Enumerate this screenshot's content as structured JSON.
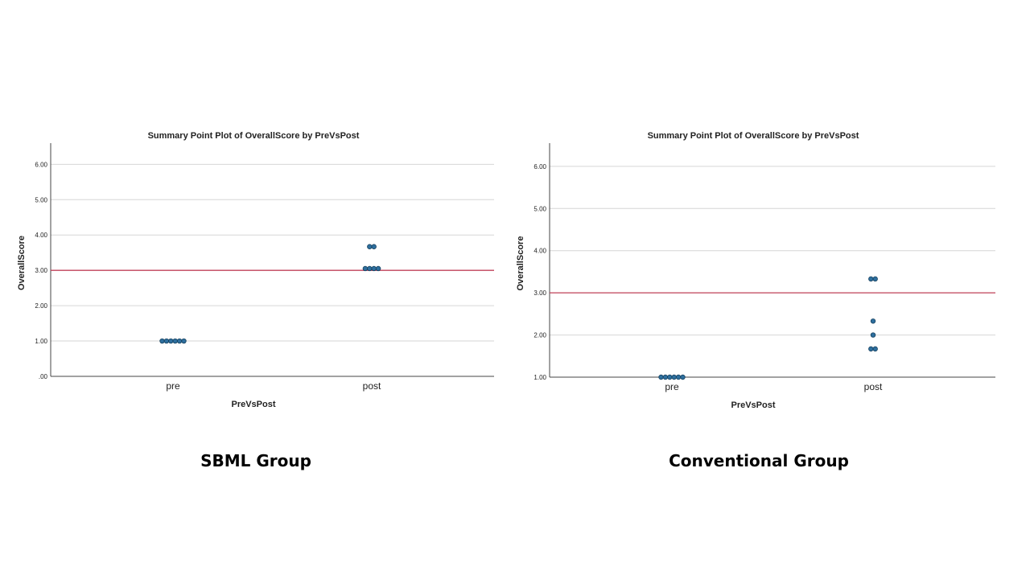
{
  "colors": {
    "point_fill": "#2e6f9e",
    "point_stroke": "#16415f",
    "reference_line": "#c2415a",
    "grid": "#d6d6d6",
    "axis": "#444444"
  },
  "charts": {
    "sbml": {
      "caption": "SBML Group"
    },
    "conventional": {
      "caption": "Conventional Group"
    }
  },
  "chart_data": [
    {
      "type": "scatter",
      "title": "Summary Point Plot of OverallScore by PreVsPost",
      "xlabel": "PreVsPost",
      "ylabel": "OverallScore",
      "categories": [
        "pre",
        "post"
      ],
      "ylim": [
        0,
        6.6
      ],
      "yticks": [
        0,
        1,
        2,
        3,
        4,
        5,
        6
      ],
      "ytick_labels": [
        ".00",
        "1.00",
        "2.00",
        "3.00",
        "4.00",
        "5.00",
        "6.00"
      ],
      "grid": true,
      "reference_line": 3.0,
      "points": [
        {
          "category": "pre",
          "values": [
            1.0,
            1.0,
            1.0,
            1.0,
            1.0,
            1.0
          ]
        },
        {
          "category": "post",
          "values": [
            3.67,
            3.67,
            3.05,
            3.05,
            3.05,
            3.05
          ]
        }
      ]
    },
    {
      "type": "scatter",
      "title": "Summary Point Plot of OverallScore by PreVsPost",
      "xlabel": "PreVsPost",
      "ylabel": "OverallScore",
      "categories": [
        "pre",
        "post"
      ],
      "ylim": [
        1,
        6.55
      ],
      "yticks": [
        1,
        2,
        3,
        4,
        5,
        6
      ],
      "ytick_labels": [
        "1.00",
        "2.00",
        "3.00",
        "4.00",
        "5.00",
        "6.00"
      ],
      "grid": true,
      "reference_line": 3.0,
      "points": [
        {
          "category": "pre",
          "values": [
            1.0,
            1.0,
            1.0,
            1.0,
            1.0,
            1.0
          ]
        },
        {
          "category": "post",
          "values": [
            3.33,
            3.33,
            2.33,
            2.0,
            1.67,
            1.67
          ]
        }
      ]
    }
  ]
}
